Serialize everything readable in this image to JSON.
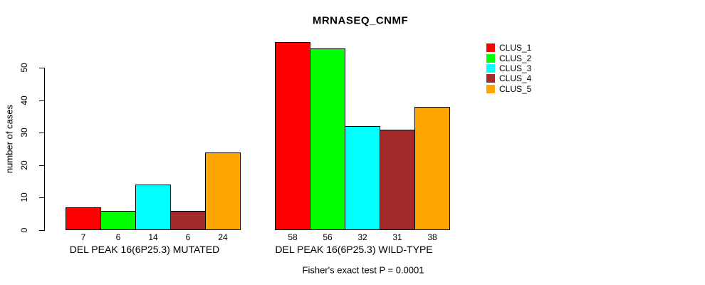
{
  "chart_data": {
    "type": "bar",
    "title": "MRNASEQ_CNMF",
    "ylabel": "number of cases",
    "xlabel": "",
    "ylim": [
      0,
      58
    ],
    "yticks": [
      0,
      10,
      20,
      30,
      40,
      50
    ],
    "grid": false,
    "legend_position": "top-right",
    "categories": [
      "DEL PEAK 16(6P25.3) MUTATED",
      "DEL PEAK 16(6P25.3) WILD-TYPE"
    ],
    "series": [
      {
        "name": "CLUS_1",
        "color": "#FF0000",
        "values": [
          7,
          58
        ]
      },
      {
        "name": "CLUS_2",
        "color": "#00FF00",
        "values": [
          6,
          56
        ]
      },
      {
        "name": "CLUS_3",
        "color": "#00FFFF",
        "values": [
          14,
          32
        ]
      },
      {
        "name": "CLUS_4",
        "color": "#A52A2A",
        "values": [
          6,
          31
        ]
      },
      {
        "name": "CLUS_5",
        "color": "#FFA500",
        "values": [
          24,
          38
        ]
      }
    ],
    "bar_value_labels_shown": true,
    "annotation": "Fisher's exact test P = 0.0001",
    "axis_color": "#000000",
    "bar_border_color": "#000000",
    "text_color": "#000000",
    "background_color": "#FFFFFF"
  }
}
